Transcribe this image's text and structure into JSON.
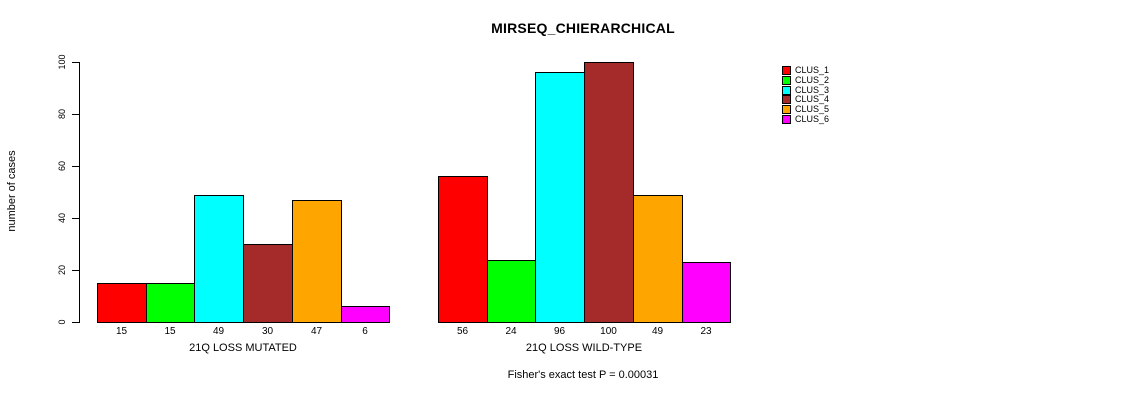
{
  "chart_data": {
    "type": "bar",
    "title": "MIRSEQ_CHIERARCHICAL",
    "ylabel": "number of cases",
    "xlabel": "",
    "ylim": [
      0,
      100
    ],
    "yticks": [
      0,
      20,
      40,
      60,
      80,
      100
    ],
    "grid": false,
    "legend_position": "right",
    "background_color": "#ffffff",
    "axis_color": "#000000",
    "groups": [
      {
        "label": "21Q LOSS MUTATED",
        "values": [
          15,
          15,
          49,
          30,
          47,
          6
        ]
      },
      {
        "label": "21Q LOSS WILD-TYPE",
        "values": [
          56,
          24,
          96,
          100,
          49,
          23
        ]
      }
    ],
    "legend": [
      {
        "label": "CLUS_1",
        "color": "#FF0000"
      },
      {
        "label": "CLUS_2",
        "color": "#00FF00"
      },
      {
        "label": "CLUS_3",
        "color": "#00FFFF"
      },
      {
        "label": "CLUS_4",
        "color": "#A52A2A"
      },
      {
        "label": "CLUS_5",
        "color": "#FFA500"
      },
      {
        "label": "CLUS_6",
        "color": "#FF00FF"
      }
    ],
    "footnote": "Fisher's exact test P = 0.00031"
  }
}
